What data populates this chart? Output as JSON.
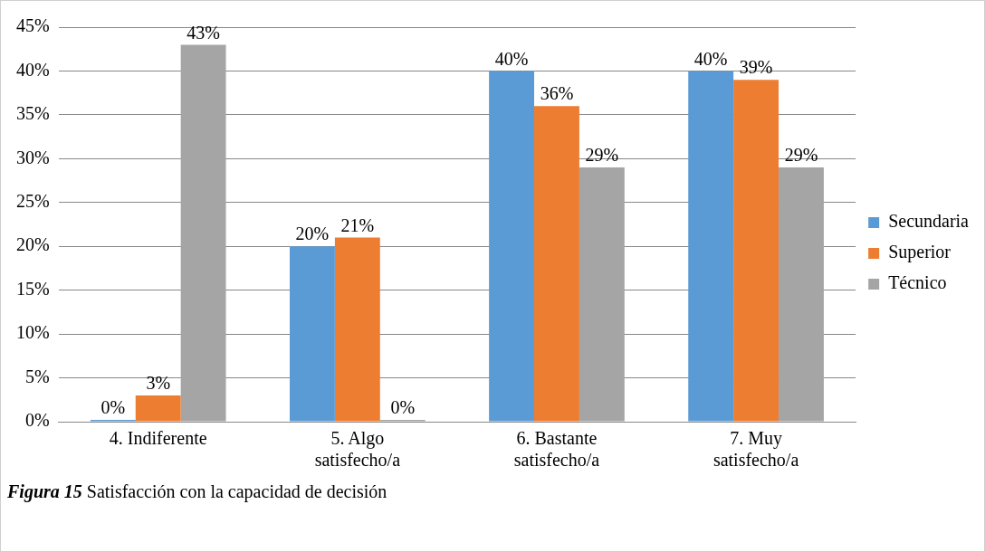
{
  "chart_data": {
    "type": "bar",
    "categories": [
      [
        "4. Indiferente"
      ],
      [
        "5. Algo",
        "satisfecho/a"
      ],
      [
        "6. Bastante",
        "satisfecho/a"
      ],
      [
        "7. Muy",
        "satisfecho/a"
      ]
    ],
    "series": [
      {
        "name": "Secundaria",
        "color": "#5b9bd5",
        "values": [
          0,
          20,
          40,
          40
        ],
        "value_labels": [
          "0%",
          "20%",
          "40%",
          "40%"
        ]
      },
      {
        "name": "Superior",
        "color": "#ed7d31",
        "values": [
          3,
          21,
          36,
          39
        ],
        "value_labels": [
          "3%",
          "21%",
          "36%",
          "39%"
        ]
      },
      {
        "name": "Técnico",
        "color": "#a5a5a5",
        "values": [
          43,
          0,
          29,
          29
        ],
        "value_labels": [
          "43%",
          "0%",
          "29%",
          "29%"
        ]
      }
    ],
    "ylim": [
      0,
      45
    ],
    "yticks": [
      {
        "value": 0,
        "label": "0%"
      },
      {
        "value": 5,
        "label": "5%"
      },
      {
        "value": 10,
        "label": "10%"
      },
      {
        "value": 15,
        "label": "15%"
      },
      {
        "value": 20,
        "label": "20%"
      },
      {
        "value": 25,
        "label": "25%"
      },
      {
        "value": 30,
        "label": "30%"
      },
      {
        "value": 35,
        "label": "35%"
      },
      {
        "value": 40,
        "label": "40%"
      },
      {
        "value": 45,
        "label": "45%"
      }
    ],
    "grid": "y",
    "legend": "right",
    "annotations": [
      "Figura 15",
      "Satisfacción con la capacidad de decisión"
    ]
  }
}
